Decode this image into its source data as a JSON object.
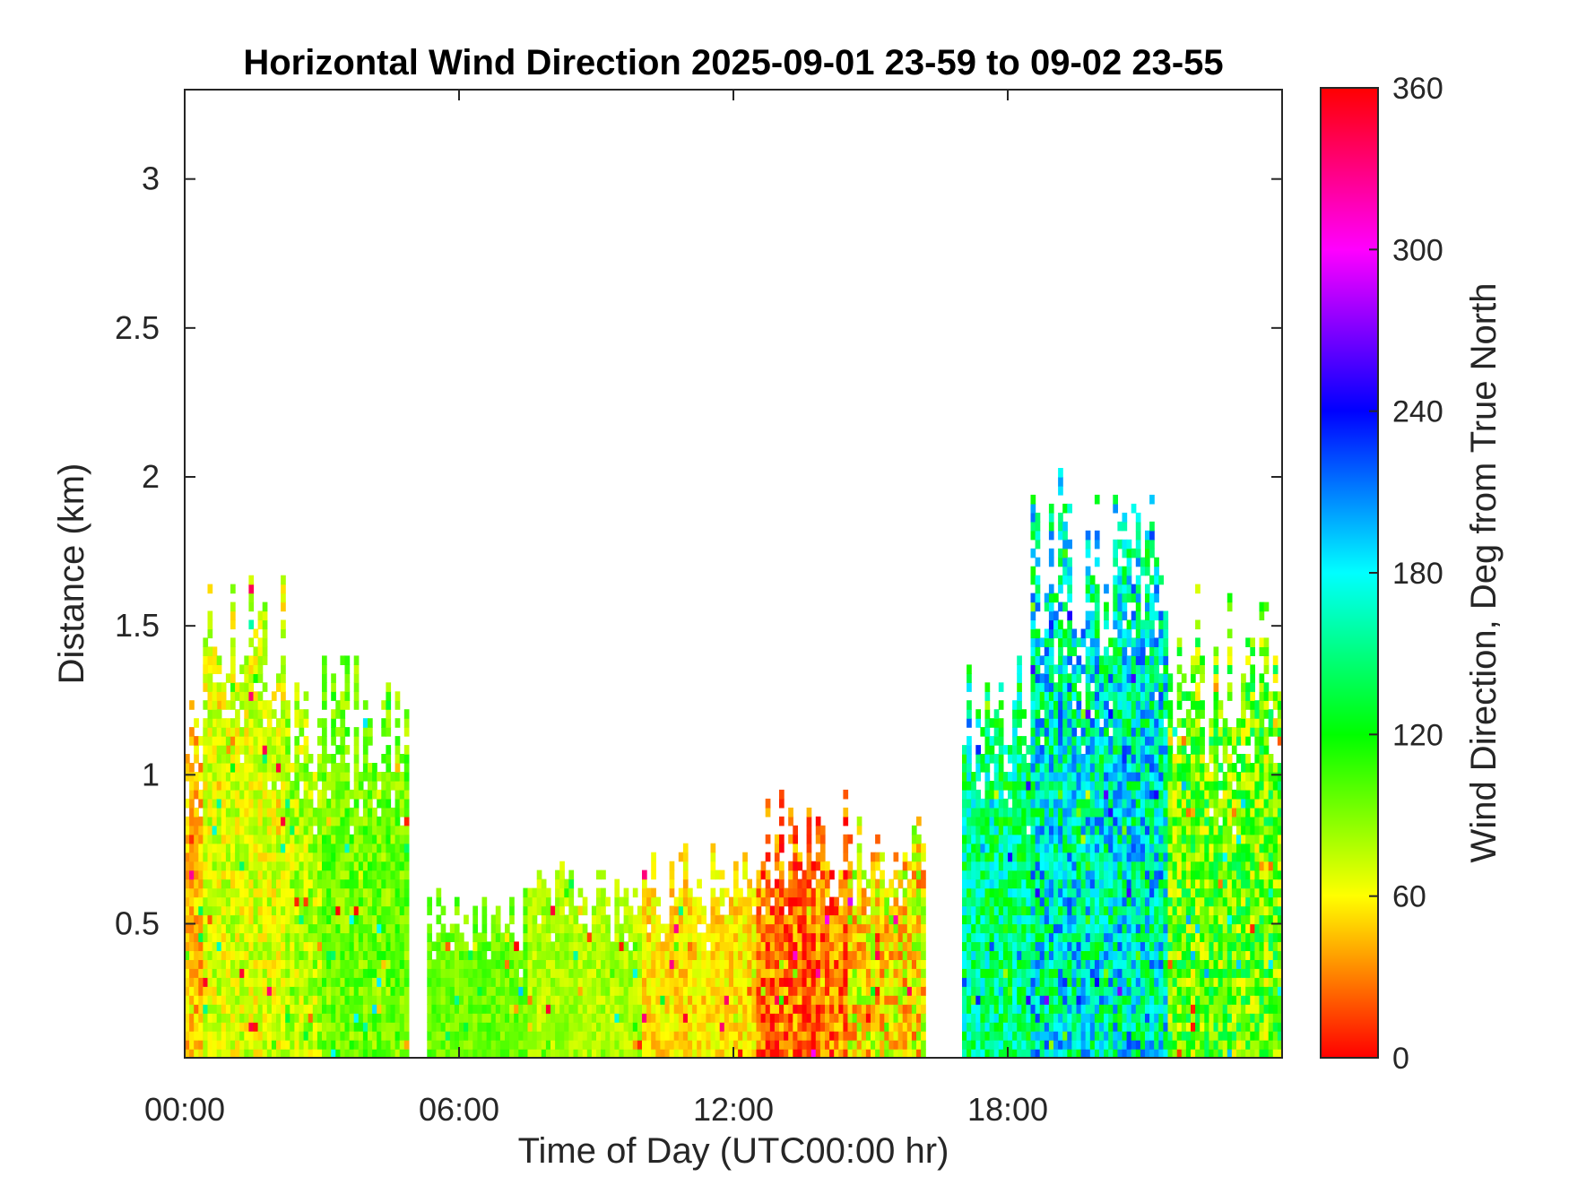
{
  "chart_data": {
    "type": "heatmap",
    "title": "Horizontal Wind Direction 2025-09-01 23-59 to 09-02 23-55",
    "xlabel": "Time of Day (UTC00:00 hr)",
    "ylabel": "Distance (km)",
    "x_range_hours": [
      0,
      24
    ],
    "y_range_km": [
      0.05,
      3.3
    ],
    "x_ticks": [
      {
        "value": 0,
        "label": "00:00"
      },
      {
        "value": 6,
        "label": "06:00"
      },
      {
        "value": 12,
        "label": "12:00"
      },
      {
        "value": 18,
        "label": "18:00"
      }
    ],
    "y_ticks": [
      {
        "value": 0.5,
        "label": "0.5"
      },
      {
        "value": 1,
        "label": "1"
      },
      {
        "value": 1.5,
        "label": "1.5"
      },
      {
        "value": 2,
        "label": "2"
      },
      {
        "value": 2.5,
        "label": "2.5"
      },
      {
        "value": 3,
        "label": "3"
      }
    ],
    "colorbar": {
      "label": "Wind Direction, Deg from True North",
      "range": [
        0,
        360
      ],
      "ticks": [
        {
          "value": 0,
          "label": "0"
        },
        {
          "value": 60,
          "label": "60"
        },
        {
          "value": 120,
          "label": "120"
        },
        {
          "value": 180,
          "label": "180"
        },
        {
          "value": 240,
          "label": "240"
        },
        {
          "value": 300,
          "label": "300"
        },
        {
          "value": 360,
          "label": "360"
        }
      ],
      "colormap": "hsv",
      "colors": [
        "#ff0000",
        "#ffff00",
        "#00ff00",
        "#00ffff",
        "#0000ff",
        "#ff00ff",
        "#ff0000"
      ]
    },
    "grid": false,
    "data_regions": [
      {
        "t0": 0.0,
        "t1": 0.9,
        "hmax": 1.45,
        "dir": 45,
        "spread": 20
      },
      {
        "t0": 0.4,
        "t1": 2.2,
        "hmax": 1.65,
        "dir": 70,
        "spread": 22
      },
      {
        "t0": 2.2,
        "t1": 3.0,
        "hmax": 1.25,
        "dir": 80,
        "spread": 25
      },
      {
        "t0": 3.0,
        "t1": 4.8,
        "hmax": 1.3,
        "dir": 95,
        "spread": 22
      },
      {
        "t0": 5.3,
        "t1": 7.5,
        "hmax": 0.55,
        "dir": 95,
        "spread": 15
      },
      {
        "t0": 7.5,
        "t1": 10.0,
        "hmax": 0.65,
        "dir": 80,
        "spread": 15
      },
      {
        "t0": 10.0,
        "t1": 12.5,
        "hmax": 0.7,
        "dir": 55,
        "spread": 18
      },
      {
        "t0": 12.5,
        "t1": 14.5,
        "hmax": 0.85,
        "dir": 25,
        "spread": 30
      },
      {
        "t0": 14.5,
        "t1": 16.1,
        "hmax": 0.8,
        "dir": 60,
        "spread": 40
      },
      {
        "t0": 17.0,
        "t1": 18.5,
        "hmax": 1.3,
        "dir": 150,
        "spread": 40
      },
      {
        "t0": 18.5,
        "t1": 21.5,
        "hmax": 1.85,
        "dir": 170,
        "spread": 55
      },
      {
        "t0": 21.5,
        "t1": 24.0,
        "hmax": 1.5,
        "dir": 100,
        "spread": 45
      }
    ]
  }
}
